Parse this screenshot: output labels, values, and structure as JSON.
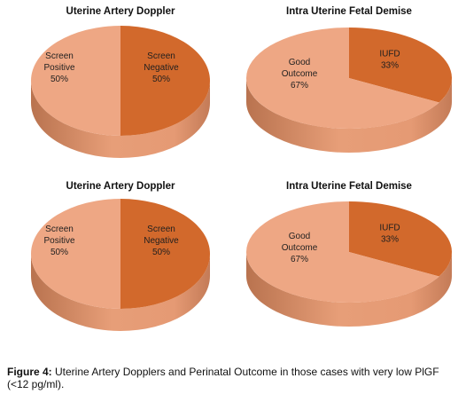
{
  "colors": {
    "light_slice": "#EEA784",
    "dark_slice": "#D2692C"
  },
  "chart_data": [
    {
      "type": "pie",
      "title": "Uterine Artery Doppler",
      "slices": [
        {
          "label": [
            "Screen",
            "Negative",
            "50%"
          ],
          "value": 50,
          "color": "dark"
        },
        {
          "label": [
            "Screen",
            "Positive",
            "50%"
          ],
          "value": 50,
          "color": "light"
        }
      ]
    },
    {
      "type": "pie",
      "title": "Intra Uterine Fetal Demise",
      "slices": [
        {
          "label": [
            "IUFD",
            "33%"
          ],
          "value": 33,
          "color": "dark"
        },
        {
          "label": [
            "Good",
            "Outcome",
            "67%"
          ],
          "value": 67,
          "color": "light"
        }
      ]
    },
    {
      "type": "pie",
      "title": "Uterine Artery Doppler",
      "slices": [
        {
          "label": [
            "Screen",
            "Negative",
            "50%"
          ],
          "value": 50,
          "color": "dark"
        },
        {
          "label": [
            "Screen",
            "Positive",
            "50%"
          ],
          "value": 50,
          "color": "light"
        }
      ]
    },
    {
      "type": "pie",
      "title": "Intra Uterine Fetal Demise",
      "slices": [
        {
          "label": [
            "IUFD",
            "33%"
          ],
          "value": 33,
          "color": "dark"
        },
        {
          "label": [
            "Good",
            "Outcome",
            "67%"
          ],
          "value": 67,
          "color": "light"
        }
      ]
    }
  ],
  "caption": {
    "label": "Figure 4:",
    "text": " Uterine Artery Dopplers and Perinatal Outcome in those cases with very low PlGF (<12 pg/ml)."
  }
}
